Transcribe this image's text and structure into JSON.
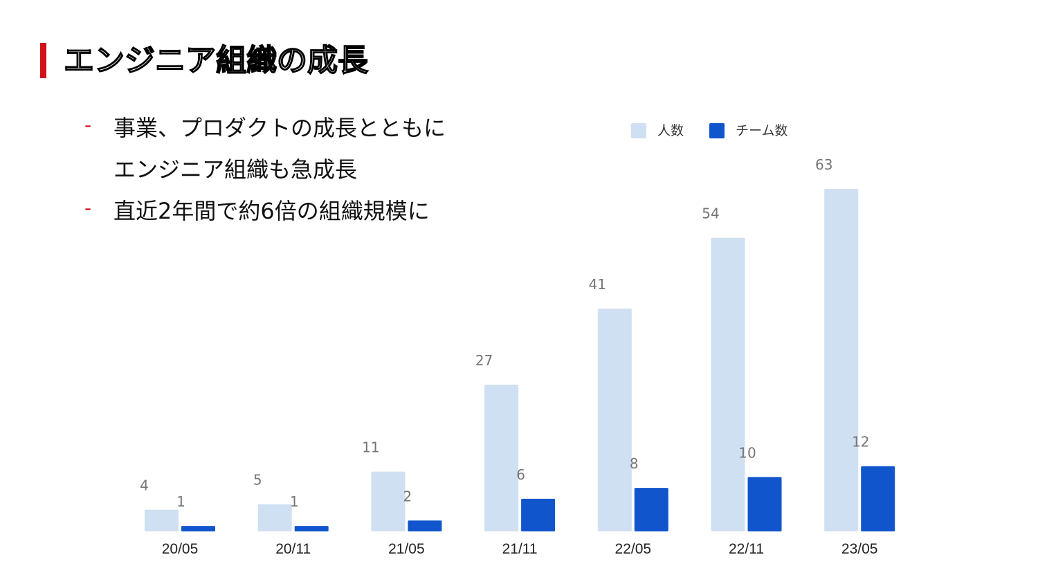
{
  "slide": {
    "title": "エンジニア組織の成長",
    "accent_color": "#d0121b",
    "bullets": [
      {
        "dash": "-",
        "lines": [
          "事業、プロダクトの成長とともに",
          "エンジニア組織も急成長"
        ]
      },
      {
        "dash": "-",
        "lines": [
          "直近2年間で約6倍の組織規模に"
        ]
      }
    ]
  },
  "legend": {
    "items": [
      {
        "label": "人数",
        "color": "#cfe0f2"
      },
      {
        "label": "チーム数",
        "color": "#1155cc"
      }
    ],
    "placement": "top-right"
  },
  "chart_data": {
    "type": "bar",
    "categories": [
      "20/05",
      "20/11",
      "21/05",
      "21/11",
      "22/05",
      "22/11",
      "23/05"
    ],
    "series": [
      {
        "name": "人数",
        "values": [
          4,
          5,
          11,
          27,
          41,
          54,
          63
        ],
        "color": "#cfe0f2"
      },
      {
        "name": "チーム数",
        "values": [
          1,
          1,
          2,
          6,
          8,
          10,
          12
        ],
        "color": "#1155cc"
      }
    ],
    "title": "",
    "xlabel": "",
    "ylabel": "",
    "ylim": [
      0,
      70
    ],
    "grid": false,
    "data_labels": true,
    "label_color": "#757575",
    "axis_label_color": "#222222"
  }
}
